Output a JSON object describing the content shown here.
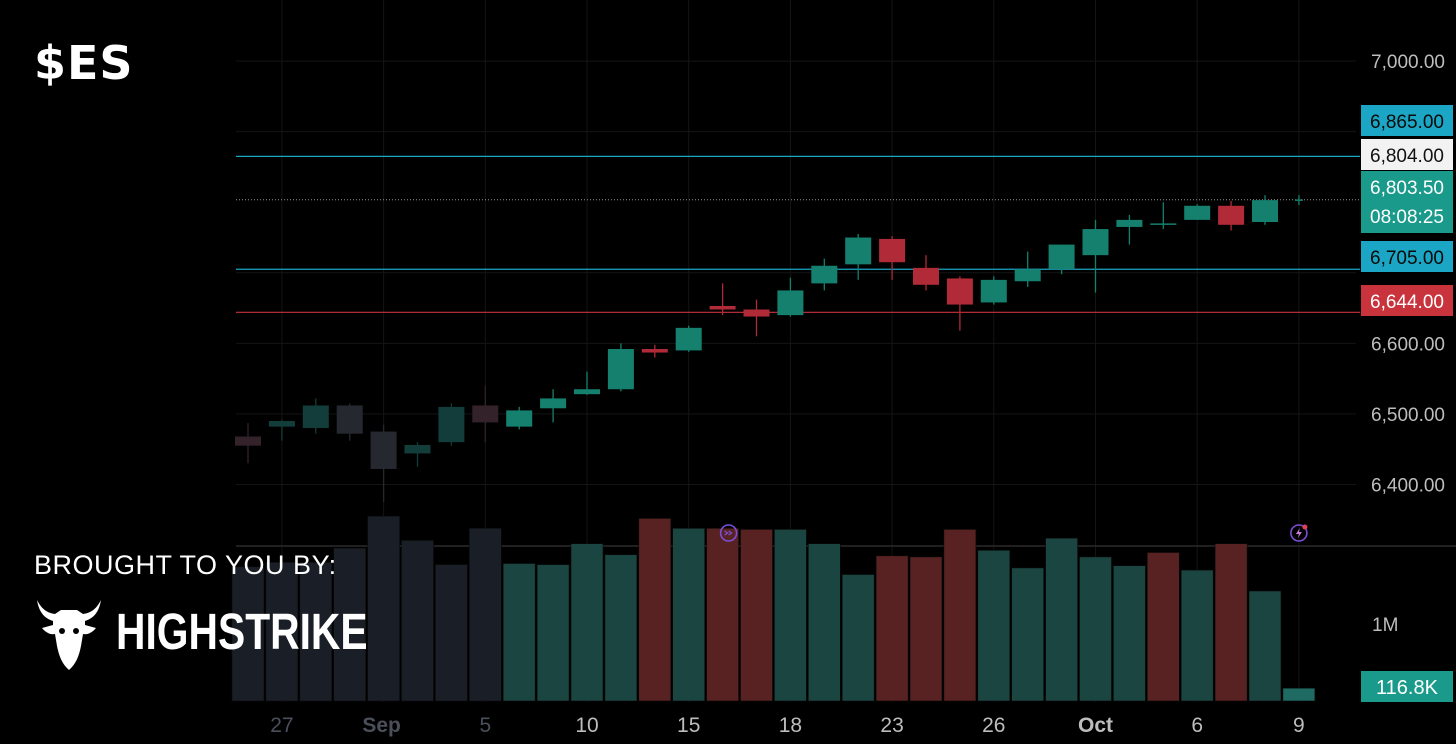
{
  "header": {
    "ticker": "$ES"
  },
  "sponsor": {
    "label": "BROUGHT TO YOU BY:",
    "brand": "HIGHSTRIKE",
    "logo_icon": "bull-head-icon"
  },
  "colors": {
    "up": "#15806E",
    "down": "#B02A37",
    "cyan": "#1AA6C4",
    "red_line": "#C9333C",
    "grid": "#141414"
  },
  "chart_data": {
    "type": "candlestick",
    "price_axis": {
      "range": [
        6310,
        7020
      ],
      "ticks": [
        "7,000.00",
        "6,600.00",
        "6,500.00",
        "6,400.00"
      ],
      "tick_values": [
        7000,
        6600,
        6500,
        6400
      ]
    },
    "x_ticks": [
      {
        "label": "27",
        "index": 1
      },
      {
        "label": "Sep",
        "index": 4
      },
      {
        "label": "5",
        "index": 7
      },
      {
        "label": "10",
        "index": 10
      },
      {
        "label": "15",
        "index": 13
      },
      {
        "label": "18",
        "index": 16
      },
      {
        "label": "23",
        "index": 19
      },
      {
        "label": "26",
        "index": 22
      },
      {
        "label": "Oct",
        "index": 25
      },
      {
        "label": "6",
        "index": 28
      },
      {
        "label": "9",
        "index": 31
      }
    ],
    "candles": [
      {
        "o": 6468,
        "h": 6487,
        "l": 6430,
        "c": 6455
      },
      {
        "o": 6482,
        "h": 6492,
        "l": 6462,
        "c": 6490
      },
      {
        "o": 6480,
        "h": 6522,
        "l": 6472,
        "c": 6512
      },
      {
        "o": 6512,
        "h": 6515,
        "l": 6462,
        "c": 6472
      },
      {
        "o": 6475,
        "h": 6485,
        "l": 6375,
        "c": 6422
      },
      {
        "o": 6444,
        "h": 6460,
        "l": 6425,
        "c": 6456
      },
      {
        "o": 6460,
        "h": 6515,
        "l": 6455,
        "c": 6510
      },
      {
        "o": 6512,
        "h": 6540,
        "l": 6460,
        "c": 6488
      },
      {
        "o": 6482,
        "h": 6510,
        "l": 6478,
        "c": 6505
      },
      {
        "o": 6508,
        "h": 6535,
        "l": 6488,
        "c": 6522
      },
      {
        "o": 6528,
        "h": 6560,
        "l": 6527,
        "c": 6535
      },
      {
        "o": 6535,
        "h": 6600,
        "l": 6532,
        "c": 6592
      },
      {
        "o": 6592,
        "h": 6598,
        "l": 6580,
        "c": 6587
      },
      {
        "o": 6590,
        "h": 6625,
        "l": 6588,
        "c": 6622
      },
      {
        "o": 6653,
        "h": 6685,
        "l": 6640,
        "c": 6648
      },
      {
        "o": 6648,
        "h": 6662,
        "l": 6610,
        "c": 6638
      },
      {
        "o": 6640,
        "h": 6693,
        "l": 6638,
        "c": 6675
      },
      {
        "o": 6685,
        "h": 6720,
        "l": 6675,
        "c": 6710
      },
      {
        "o": 6712,
        "h": 6755,
        "l": 6690,
        "c": 6750
      },
      {
        "o": 6748,
        "h": 6752,
        "l": 6690,
        "c": 6715
      },
      {
        "o": 6707,
        "h": 6725,
        "l": 6675,
        "c": 6683
      },
      {
        "o": 6692,
        "h": 6695,
        "l": 6618,
        "c": 6655
      },
      {
        "o": 6658,
        "h": 6695,
        "l": 6655,
        "c": 6690
      },
      {
        "o": 6688,
        "h": 6730,
        "l": 6680,
        "c": 6705
      },
      {
        "o": 6705,
        "h": 6740,
        "l": 6698,
        "c": 6740
      },
      {
        "o": 6725,
        "h": 6775,
        "l": 6672,
        "c": 6762
      },
      {
        "o": 6765,
        "h": 6782,
        "l": 6740,
        "c": 6775
      },
      {
        "o": 6770,
        "h": 6800,
        "l": 6762,
        "c": 6770
      },
      {
        "o": 6775,
        "h": 6797,
        "l": 6775,
        "c": 6795
      },
      {
        "o": 6795,
        "h": 6802,
        "l": 6760,
        "c": 6768
      },
      {
        "o": 6772,
        "h": 6810,
        "l": 6768,
        "c": 6803
      },
      {
        "o": 6803,
        "h": 6810,
        "l": 6796,
        "c": 6804
      }
    ],
    "volume": {
      "axis_label": "1M",
      "values": [
        1.22,
        1.26,
        1.26,
        1.39,
        1.68,
        1.46,
        1.24,
        1.57,
        1.25,
        1.24,
        1.43,
        1.33,
        1.66,
        1.57,
        1.57,
        1.56,
        1.56,
        1.43,
        1.15,
        1.32,
        1.31,
        1.56,
        1.37,
        1.21,
        1.48,
        1.31,
        1.23,
        1.35,
        1.19,
        1.43,
        1.0,
        0.117
      ],
      "colors": [
        "d",
        "d",
        "d",
        "d",
        "d",
        "d",
        "d",
        "d",
        "u",
        "u",
        "u",
        "u",
        "r",
        "u",
        "r",
        "r",
        "u",
        "u",
        "u",
        "r",
        "r",
        "r",
        "u",
        "u",
        "u",
        "u",
        "u",
        "r",
        "u",
        "r",
        "u",
        "u"
      ],
      "latest_label": "116.8K"
    },
    "levels": [
      {
        "label": "6,865.00",
        "price": 6865,
        "color": "cyan",
        "line": true
      },
      {
        "label": "6,804.00",
        "price": 6804,
        "color": "white",
        "line": false
      },
      {
        "label": "6,803.50",
        "sublabel": "08:08:25",
        "price": 6803.5,
        "color": "up",
        "line": true,
        "dotted": true
      },
      {
        "label": "6,705.00",
        "price": 6705,
        "color": "cyan",
        "line": true
      },
      {
        "label": "6,644.00",
        "price": 6644,
        "color": "red",
        "line": true
      }
    ],
    "event_markers": [
      {
        "index": 14,
        "icon": "dividend-arrows-icon"
      },
      {
        "index": 31,
        "icon": "lightning-event-icon"
      }
    ]
  }
}
